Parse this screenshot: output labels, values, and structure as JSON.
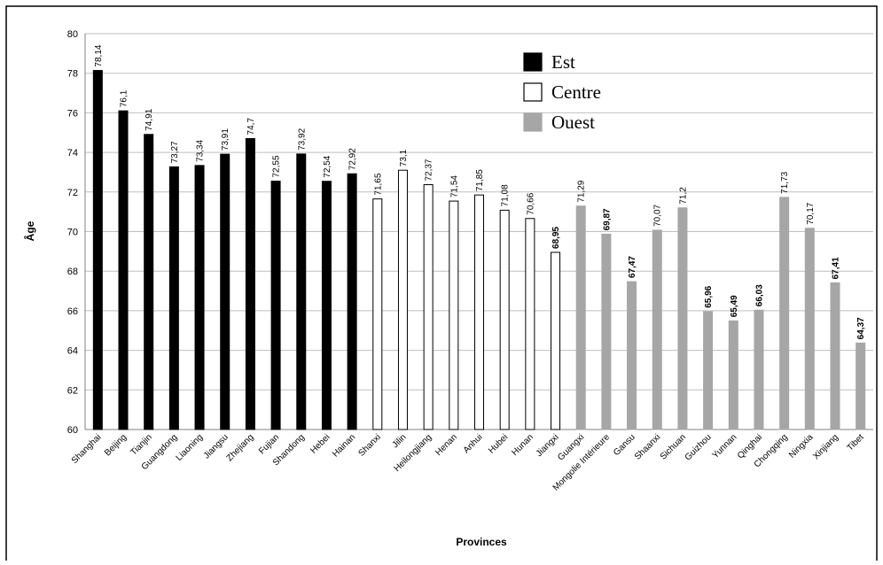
{
  "chart_data": {
    "type": "bar",
    "title": "",
    "xlabel": "Provinces",
    "ylabel": "Âge",
    "ylim": [
      60,
      80
    ],
    "yticks": [
      60,
      62,
      64,
      66,
      68,
      70,
      72,
      74,
      76,
      78,
      80
    ],
    "grid": true,
    "legend_position": "top-right",
    "categories": [
      "Shanghai",
      "Beijing",
      "Tianjin",
      "Guangdong",
      "Liaoning",
      "Jiangsu",
      "Zhejiang",
      "Fujian",
      "Shandong",
      "Hebei",
      "Hainan",
      "Shanxi",
      "Jilin",
      "Heilongjiang",
      "Henan",
      "Anhui",
      "Hubei",
      "Hunan",
      "Jiangxi",
      "Guangxi",
      "Mongolie Intérieure",
      "Gansu",
      "Shaanxi",
      "Sichuan",
      "Guizhou",
      "Yunnan",
      "Qinghai",
      "Chongqing",
      "Ningxia",
      "Xinjiang",
      "Tibet"
    ],
    "values": [
      78.14,
      76.1,
      74.91,
      73.27,
      73.34,
      73.91,
      74.7,
      72.55,
      73.92,
      72.54,
      72.92,
      71.65,
      73.1,
      72.37,
      71.54,
      71.85,
      71.08,
      70.66,
      68.95,
      71.29,
      69.87,
      67.47,
      70.07,
      71.2,
      65.96,
      65.49,
      66.03,
      71.73,
      70.17,
      67.41,
      64.37
    ],
    "labels": [
      "78,14",
      "76,1",
      "74,91",
      "73,27",
      "73,34",
      "73,91",
      "74,7",
      "72,55",
      "73,92",
      "72,54",
      "72,92",
      "71,65",
      "73,1",
      "72,37",
      "71,54",
      "71,85",
      "71,08",
      "70,66",
      "68,95",
      "71,29",
      "69,87",
      "67,47",
      "70,07",
      "71,2",
      "65,96",
      "65,49",
      "66,03",
      "71,73",
      "70,17",
      "67,41",
      "64,37"
    ],
    "bold_labels": [
      false,
      false,
      false,
      false,
      false,
      false,
      false,
      false,
      false,
      false,
      false,
      false,
      false,
      false,
      false,
      false,
      false,
      false,
      true,
      false,
      true,
      true,
      false,
      false,
      true,
      true,
      true,
      false,
      false,
      true,
      true
    ],
    "groups": [
      "Est",
      "Est",
      "Est",
      "Est",
      "Est",
      "Est",
      "Est",
      "Est",
      "Est",
      "Est",
      "Est",
      "Centre",
      "Centre",
      "Centre",
      "Centre",
      "Centre",
      "Centre",
      "Centre",
      "Centre",
      "Ouest",
      "Ouest",
      "Ouest",
      "Ouest",
      "Ouest",
      "Ouest",
      "Ouest",
      "Ouest",
      "Ouest",
      "Ouest",
      "Ouest",
      "Ouest"
    ],
    "legend": [
      {
        "name": "Est",
        "fill": "#000000",
        "stroke": "#000000"
      },
      {
        "name": "Centre",
        "fill": "#ffffff",
        "stroke": "#000000"
      },
      {
        "name": "Ouest",
        "fill": "#a6a6a6",
        "stroke": "#a6a6a6"
      }
    ]
  }
}
